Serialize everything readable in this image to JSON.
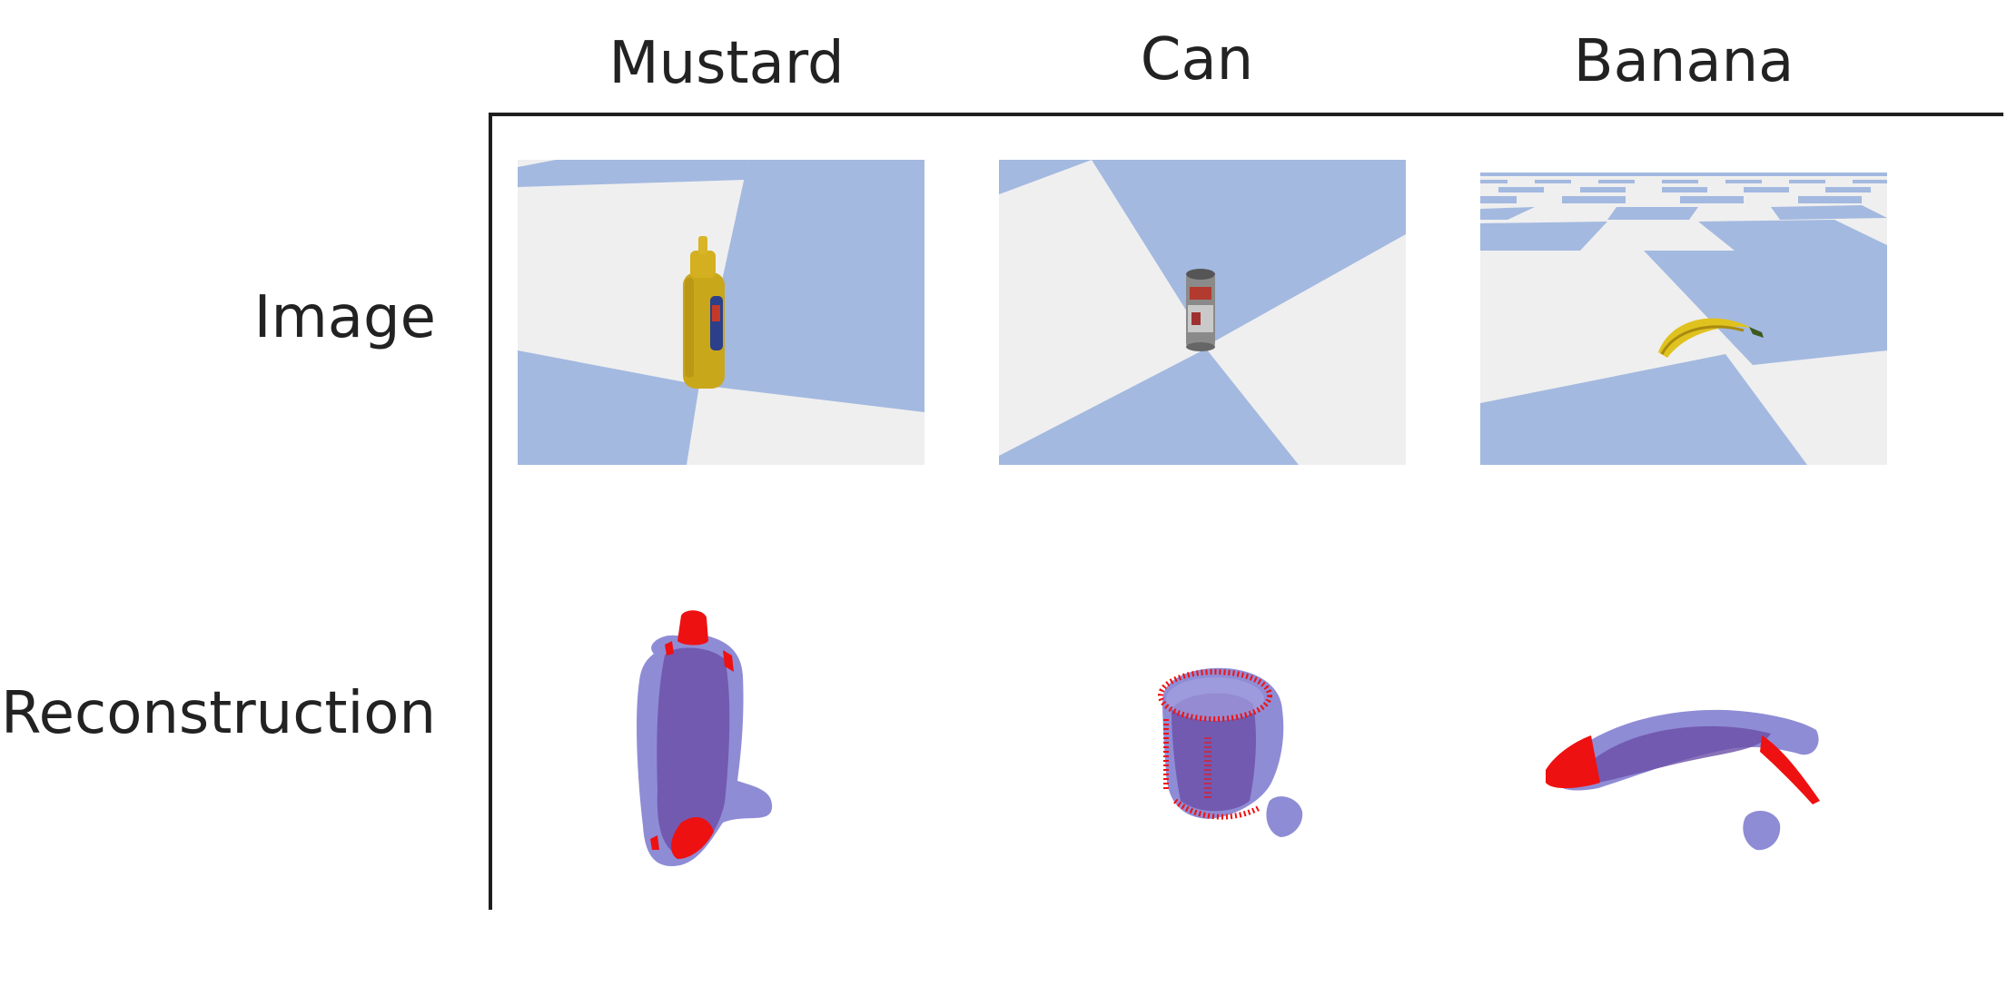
{
  "columns": [
    {
      "title": "Mustard"
    },
    {
      "title": "Can"
    },
    {
      "title": "Banana"
    }
  ],
  "rows": {
    "image_label": "Image",
    "reconstruction_label": "Reconstruction"
  },
  "colors": {
    "floor_blue": "#a3b9e0",
    "floor_light": "#efefef",
    "mesh_purple": "#7b72c9",
    "mesh_dark": "#6a4ea8",
    "error_red": "#ee1111",
    "axis": "#1e1e1e"
  },
  "icons": [
    "mustard-bottle-icon",
    "soda-can-icon",
    "banana-icon"
  ]
}
